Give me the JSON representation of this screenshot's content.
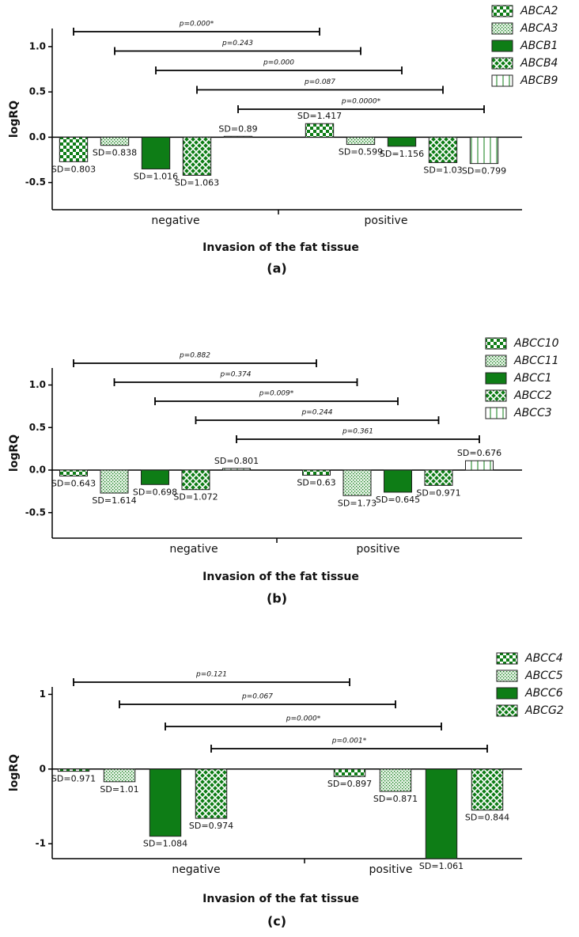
{
  "chart_data": [
    {
      "type": "bar",
      "panel_label": "(a)",
      "x_label": "Invasion of the fat tissue",
      "y_label": "logRQ",
      "categories": [
        "negative",
        "positive"
      ],
      "ylim": [
        -0.8,
        1.2
      ],
      "yticks": [
        -0.5,
        {
          "value": 0,
          "label": "0.0"
        },
        0.5,
        {
          "value": 1,
          "label": "1.0"
        }
      ],
      "series": [
        {
          "name": "ABCA2",
          "color": "#0e7d16",
          "pattern": "checker",
          "values": [
            -0.27,
            0.15
          ],
          "sd_labels": [
            "SD=0.803",
            "SD=1.417"
          ],
          "p_label": "p=0.000*"
        },
        {
          "name": "ABCA3",
          "color": "#0e7d16",
          "pattern": "dots",
          "values": [
            -0.09,
            -0.08
          ],
          "sd_labels": [
            "SD=0.838",
            "SD=0.599"
          ],
          "p_label": "p=0.243"
        },
        {
          "name": "ABCB1",
          "color": "#0e7d16",
          "pattern": "solid",
          "values": [
            -0.35,
            -0.1
          ],
          "sd_labels": [
            "SD=1.016",
            "SD=1.156"
          ],
          "p_label": "p=0.000"
        },
        {
          "name": "ABCB4",
          "color": "#0e7d16",
          "pattern": "crosshatch",
          "values": [
            -0.42,
            -0.28
          ],
          "sd_labels": [
            "SD=1.063",
            "SD=1.03"
          ],
          "p_label": "p=0.087"
        },
        {
          "name": "ABCB9",
          "color": "#0e7d16",
          "pattern": "vertical",
          "values": [
            0.01,
            -0.29
          ],
          "sd_labels": [
            "SD=0.89",
            "SD=0.799"
          ],
          "p_label": "p=0.0000*"
        }
      ]
    },
    {
      "type": "bar",
      "panel_label": "(b)",
      "x_label": "Invasion of the fat tissue",
      "y_label": "logRQ",
      "categories": [
        "negative",
        "positive"
      ],
      "ylim": [
        -0.8,
        1.2
      ],
      "yticks": [
        -0.5,
        {
          "value": 0,
          "label": "0.0"
        },
        0.5,
        {
          "value": 1,
          "label": "1.0"
        }
      ],
      "series": [
        {
          "name": "ABCC10",
          "color": "#0e7d16",
          "pattern": "checker",
          "values": [
            -0.07,
            -0.06
          ],
          "sd_labels": [
            "SD=0.643",
            "SD=0.63"
          ],
          "p_label": "p=0.882"
        },
        {
          "name": "ABCC11",
          "color": "#0e7d16",
          "pattern": "dots",
          "values": [
            -0.27,
            -0.3
          ],
          "sd_labels": [
            "SD=1.614",
            "SD=1.73"
          ],
          "p_label": "p=0.374"
        },
        {
          "name": "ABCC1",
          "color": "#0e7d16",
          "pattern": "solid",
          "values": [
            -0.17,
            -0.26
          ],
          "sd_labels": [
            "SD=0.698",
            "SD=0.645"
          ],
          "p_label": "p=0.009*"
        },
        {
          "name": "ABCC2",
          "color": "#0e7d16",
          "pattern": "crosshatch",
          "values": [
            -0.23,
            -0.18
          ],
          "sd_labels": [
            "SD=1.072",
            "SD=0.971"
          ],
          "p_label": "p=0.244"
        },
        {
          "name": "ABCC3",
          "color": "#0e7d16",
          "pattern": "vertical",
          "values": [
            0.02,
            0.11
          ],
          "sd_labels": [
            "SD=0.801",
            "SD=0.676"
          ],
          "p_label": "p=0.361"
        }
      ]
    },
    {
      "type": "bar",
      "panel_label": "(c)",
      "x_label": "Invasion of the fat tissue",
      "y_label": "logRQ",
      "categories": [
        "negative",
        "positive"
      ],
      "ylim": [
        -1.2,
        1.1
      ],
      "yticks": [
        -1,
        0,
        1
      ],
      "series": [
        {
          "name": "ABCC4",
          "color": "#0e7d16",
          "pattern": "checker",
          "values": [
            -0.03,
            -0.1
          ],
          "sd_labels": [
            "SD=0.971",
            "SD=0.897"
          ],
          "p_label": "p=0.121"
        },
        {
          "name": "ABCC5",
          "color": "#0e7d16",
          "pattern": "dots",
          "values": [
            -0.17,
            -0.3
          ],
          "sd_labels": [
            "SD=1.01",
            "SD=0.871"
          ],
          "p_label": "p=0.067"
        },
        {
          "name": "ABCC6",
          "color": "#0e7d16",
          "pattern": "solid",
          "values": [
            -0.9,
            -1.2
          ],
          "sd_labels": [
            "SD=1.084",
            "SD=1.061"
          ],
          "p_label": "p=0.000*"
        },
        {
          "name": "ABCG2",
          "color": "#0e7d16",
          "pattern": "crosshatch",
          "values": [
            -0.66,
            -0.55
          ],
          "sd_labels": [
            "SD=0.974",
            "SD=0.844"
          ],
          "p_label": "p=0.001*"
        }
      ]
    }
  ]
}
